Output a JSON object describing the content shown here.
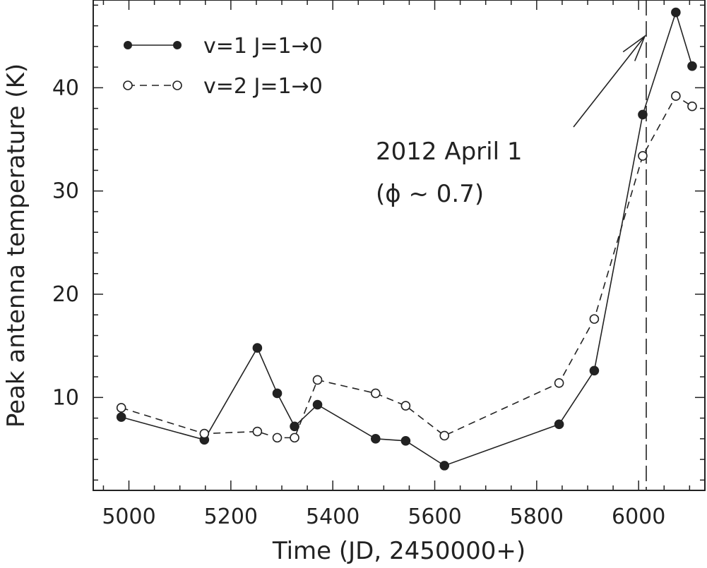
{
  "chart_data": {
    "type": "line",
    "xlabel": "Time (JD, 2450000+)",
    "ylabel": "Peak antenna temperature (K)",
    "xlim": [
      4930,
      6130
    ],
    "ylim": [
      1,
      48.5
    ],
    "xticks": [
      5000,
      5200,
      5400,
      5600,
      5800,
      6000
    ],
    "yticks": [
      10,
      20,
      30,
      40
    ],
    "grid": false,
    "legend_position": "top-left",
    "series": [
      {
        "name": "v=1 J=1→0",
        "marker": "filled-circle",
        "line_style": "solid",
        "x": [
          4985,
          5148,
          5252,
          5291,
          5325,
          5370,
          5484,
          5543,
          5619,
          5844,
          5913,
          6008,
          6073,
          6105
        ],
        "y": [
          8.1,
          5.9,
          14.8,
          10.4,
          7.2,
          9.3,
          6.0,
          5.8,
          3.4,
          7.4,
          12.6,
          37.4,
          47.3,
          42.1
        ]
      },
      {
        "name": "v=2 J=1→0",
        "marker": "open-circle",
        "line_style": "dashed",
        "x": [
          4985,
          5148,
          5252,
          5291,
          5325,
          5370,
          5484,
          5543,
          5619,
          5844,
          5913,
          6008,
          6073,
          6105
        ],
        "y": [
          9.0,
          6.5,
          6.7,
          6.1,
          6.1,
          11.7,
          10.4,
          9.2,
          6.3,
          11.4,
          17.6,
          33.4,
          39.2,
          38.2
        ]
      }
    ],
    "vertical_line": {
      "x": 6015,
      "style": "long-dash"
    },
    "annotation": {
      "line1": "2012 April 1",
      "line2": "(ϕ ~ 0.7)",
      "arrow_target_x": 6015,
      "arrow_target_y": 45
    },
    "colors": {
      "line": "#222222",
      "background": "#ffffff"
    }
  }
}
